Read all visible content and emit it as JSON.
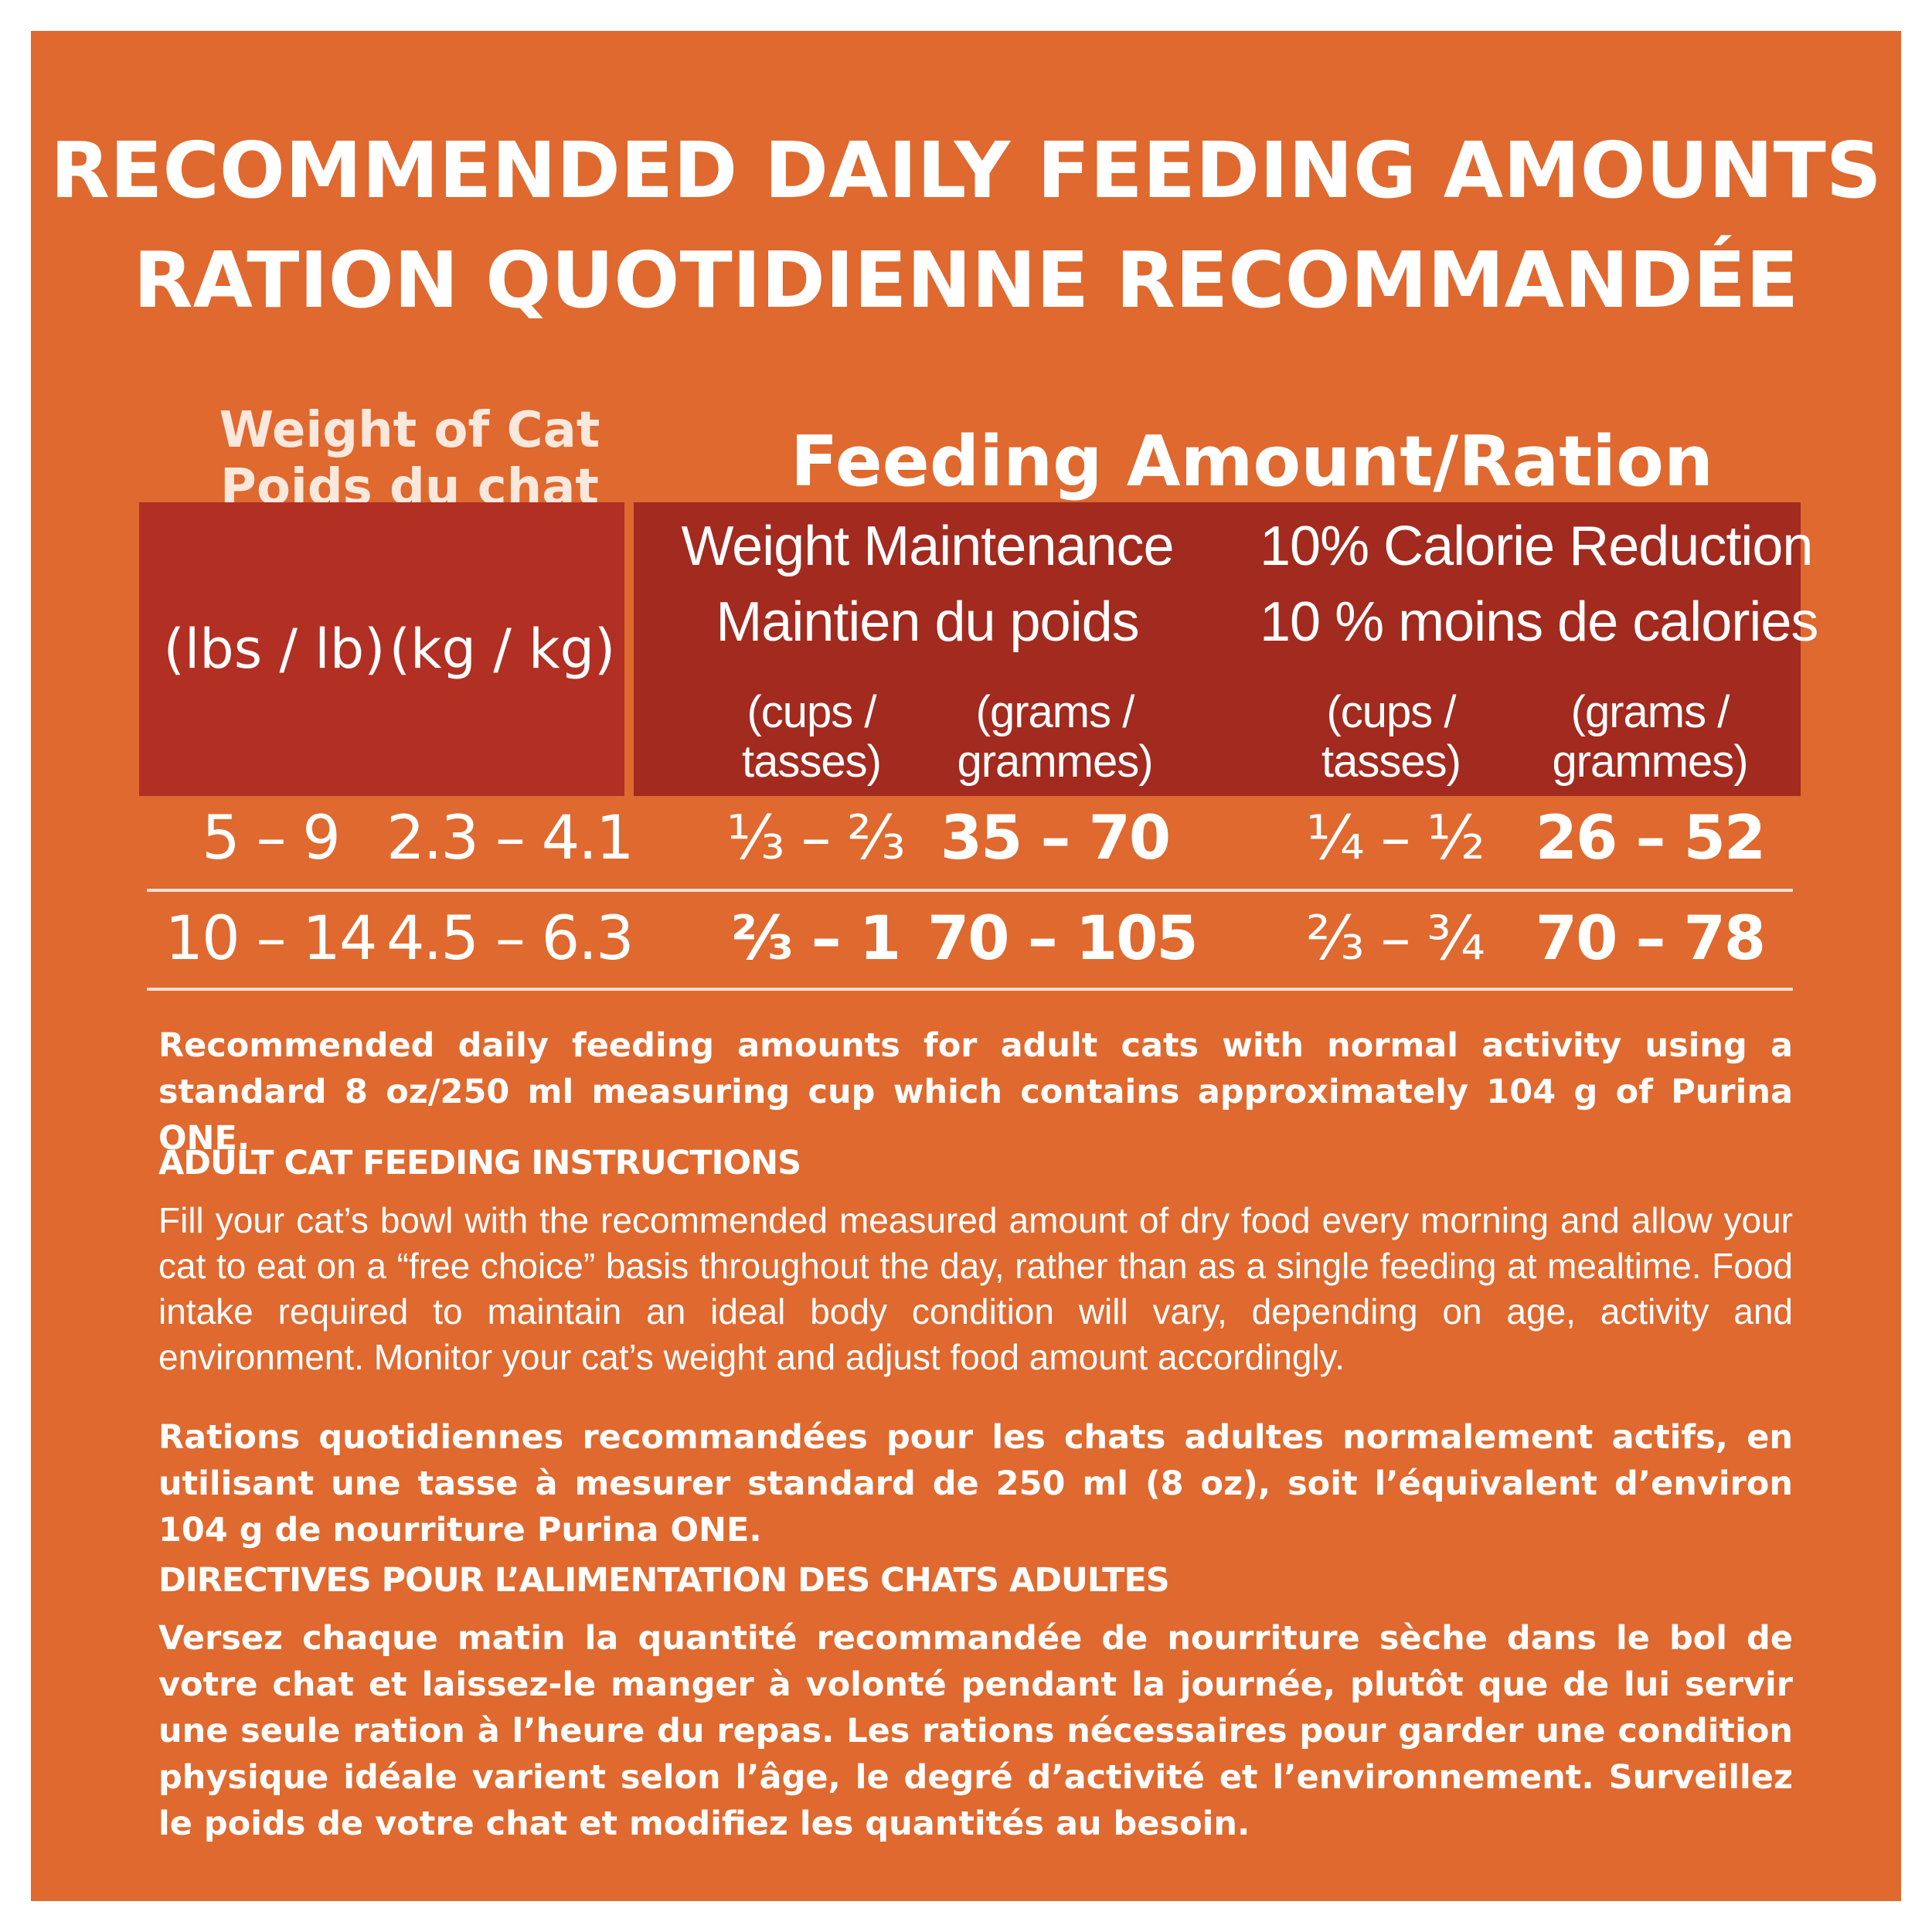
{
  "title": {
    "line1": "RECOMMENDED DAILY FEEDING AMOUNTS",
    "line2": "RATION QUOTIDIENNE RECOMMANDÉE"
  },
  "weight_header": {
    "line1": "Weight of Cat",
    "line2": "Poids du chat"
  },
  "feeding_header": "Feeding Amount/Ration",
  "units": {
    "lbs": "(lbs / lb)",
    "kg": "(kg / kg)"
  },
  "maintenance": {
    "line1": "Weight Maintenance",
    "line2": "Maintien du poids",
    "cups": [
      "(cups /",
      "tasses)"
    ],
    "grams": [
      "(grams /",
      "grammes)"
    ]
  },
  "reduction": {
    "line1": "10% Calorie Reduction",
    "line2": "10 % moins de calories",
    "cups": [
      "(cups /",
      "tasses)"
    ],
    "grams": [
      "(grams /",
      "grammes)"
    ]
  },
  "rows": [
    {
      "lbs": "5 – 9",
      "kg": "2.3 – 4.1",
      "m_cups": "⅓ – ⅔",
      "m_grams": "35 – 70",
      "r_cups": "¼ – ½",
      "r_grams": "26 – 52"
    },
    {
      "lbs": "10 – 14",
      "kg": "4.5 – 6.3",
      "m_cups": "⅔ – 1",
      "m_grams": "70 – 105",
      "r_cups": "⅔ – ¾",
      "r_grams": "70 – 78"
    }
  ],
  "note_en": "Recommended daily feeding amounts for adult cats with normal activity using a standard 8 oz/250 ml measuring cup which contains approximately 104 g of Purina ONE.",
  "heading_en": "ADULT CAT FEEDING INSTRUCTIONS",
  "instructions_en": "Fill your cat’s bowl with the recommended measured amount of dry food every morning and allow your cat to eat on a “free choice” basis throughout the day, rather than as a single feeding at mealtime. Food intake required to maintain an ideal body condition will vary, depending on age, activity and environment. Monitor your cat’s weight and adjust food amount accordingly.",
  "note_fr": "Rations quotidiennes recommandées pour les chats adultes normalement actifs, en utilisant une tasse à mesurer standard de 250 ml (8 oz), soit l’équivalent d’environ 104 g de nourriture Purina ONE.",
  "heading_fr": "DIRECTIVES POUR L’ALIMENTATION DES CHATS ADULTES",
  "instructions_fr": "Versez chaque matin la quantité recommandée de nourriture sèche dans le bol de votre chat et laissez-le manger à volonté pendant la journée, plutôt que de lui servir une seule ration à l’heure du repas. Les rations nécessaires pour garder une condition physique idéale varient selon l’âge, le degré d’activité et l’environnement. Surveillez le poids de votre chat et modifiez les quantités au besoin.",
  "colors": {
    "panel": "#df692f",
    "header_left": "#b12f23",
    "header_right": "#a22a1f",
    "text": "#ffffff"
  }
}
